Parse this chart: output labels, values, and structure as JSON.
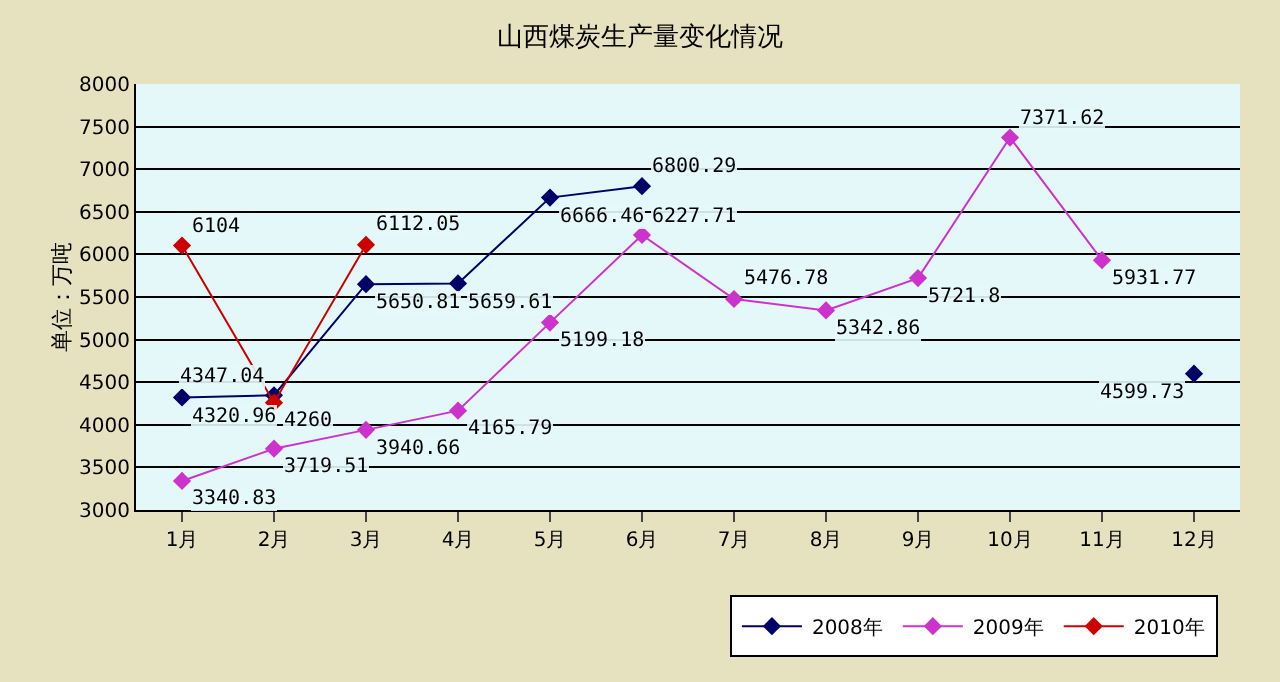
{
  "chart_data": {
    "type": "line",
    "title": "山西煤炭生产量变化情况",
    "ylabel": "单位：万吨",
    "categories": [
      "1月",
      "2月",
      "3月",
      "4月",
      "5月",
      "6月",
      "7月",
      "8月",
      "9月",
      "10月",
      "11月",
      "12月"
    ],
    "series": [
      {
        "name": "2008年",
        "color": "#000066",
        "values": [
          4320.96,
          4347.04,
          5650.81,
          5659.61,
          6666.46,
          6800.29,
          null,
          null,
          null,
          null,
          null,
          4599.73
        ]
      },
      {
        "name": "2009年",
        "color": "#cc33cc",
        "values": [
          3340.83,
          3719.51,
          3940.66,
          4165.79,
          5199.18,
          6227.71,
          5476.78,
          5342.86,
          5721.8,
          7371.62,
          5931.77,
          null
        ]
      },
      {
        "name": "2010年",
        "color": "#cc0000",
        "values": [
          6104,
          4260,
          6112.05,
          null,
          null,
          null,
          null,
          null,
          null,
          null,
          null,
          null
        ]
      }
    ],
    "ylim": [
      3000,
      8000
    ],
    "yticks": [
      3000,
      3500,
      4000,
      4500,
      5000,
      5500,
      6000,
      6500,
      7000,
      7500,
      8000
    ],
    "grid": "y",
    "legend": "bottom",
    "marker": "diamond",
    "line_style": "solid",
    "data_labels": true
  }
}
